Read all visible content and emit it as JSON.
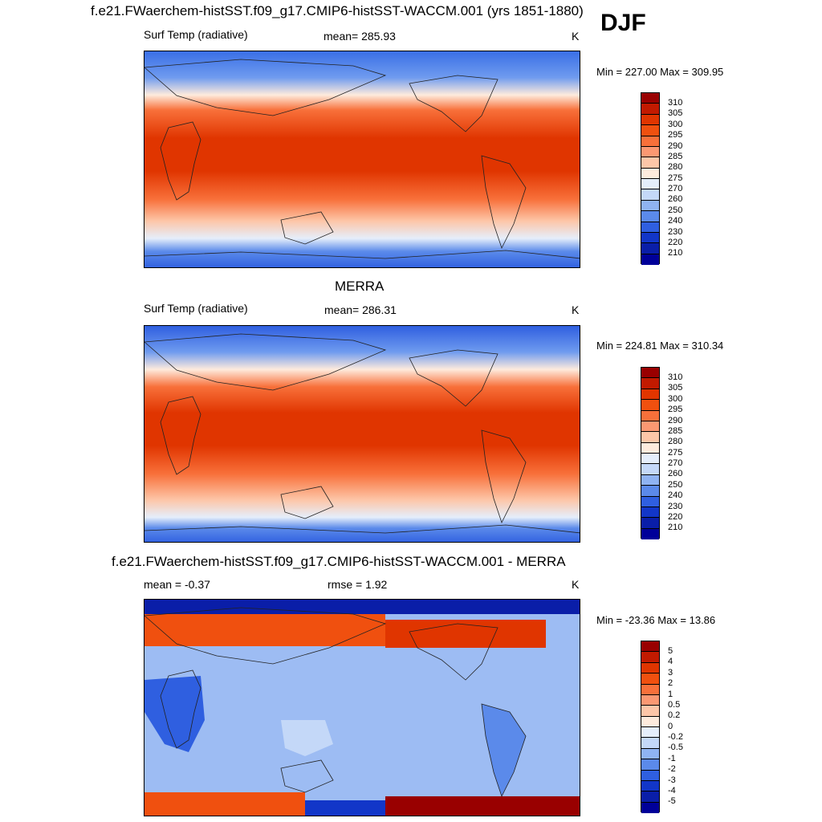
{
  "season": "DJF",
  "panels": [
    {
      "title": "f.e21.FWaerchem-histSST.f09_g17.CMIP6-histSST-WACCM.001 (yrs 1851-1880)",
      "variable": "Surf Temp (radiative)",
      "stat": "mean= 285.93",
      "stat2": "",
      "units": "K",
      "minmax": "Min = 227.00 Max = 309.95",
      "colorbar": {
        "labels": [
          "310",
          "305",
          "300",
          "295",
          "290",
          "285",
          "280",
          "275",
          "270",
          "260",
          "250",
          "240",
          "230",
          "220",
          "210"
        ],
        "colors": [
          "#990000",
          "#C21A00",
          "#E03500",
          "#F0500F",
          "#F8703A",
          "#FB9872",
          "#FDC6A8",
          "#FEEBDD",
          "#E5EEFB",
          "#C4D8F8",
          "#8FB3F2",
          "#5B8AEA",
          "#2F5FE0",
          "#1236C8",
          "#0A1EA8",
          "#000099"
        ]
      }
    },
    {
      "title": "MERRA",
      "variable": "Surf Temp (radiative)",
      "stat": "mean= 286.31",
      "stat2": "",
      "units": "K",
      "minmax": "Min = 224.81 Max = 310.34",
      "colorbar": {
        "labels": [
          "310",
          "305",
          "300",
          "295",
          "290",
          "285",
          "280",
          "275",
          "270",
          "260",
          "250",
          "240",
          "230",
          "220",
          "210"
        ],
        "colors": [
          "#990000",
          "#C21A00",
          "#E03500",
          "#F0500F",
          "#F8703A",
          "#FB9872",
          "#FDC6A8",
          "#FEEBDD",
          "#E5EEFB",
          "#C4D8F8",
          "#8FB3F2",
          "#5B8AEA",
          "#2F5FE0",
          "#1236C8",
          "#0A1EA8",
          "#000099"
        ]
      }
    },
    {
      "title": "f.e21.FWaerchem-histSST.f09_g17.CMIP6-histSST-WACCM.001 - MERRA",
      "variable": "",
      "stat": "mean =  -0.37",
      "stat2": "rmse =   1.92",
      "units": "K",
      "minmax": "Min = -23.36 Max =  13.86",
      "colorbar": {
        "labels": [
          "5",
          "4",
          "3",
          "2",
          "1",
          "0.5",
          "0.2",
          "0",
          "-0.2",
          "-0.5",
          "-1",
          "-2",
          "-3",
          "-4",
          "-5"
        ],
        "colors": [
          "#990000",
          "#C21A00",
          "#E03500",
          "#F0500F",
          "#F8703A",
          "#FB9872",
          "#FDC6A8",
          "#FEEBDD",
          "#E5EEFB",
          "#C4D8F8",
          "#8FB3F2",
          "#5B8AEA",
          "#2F5FE0",
          "#1236C8",
          "#0A1EA8",
          "#000099"
        ]
      }
    }
  ]
}
